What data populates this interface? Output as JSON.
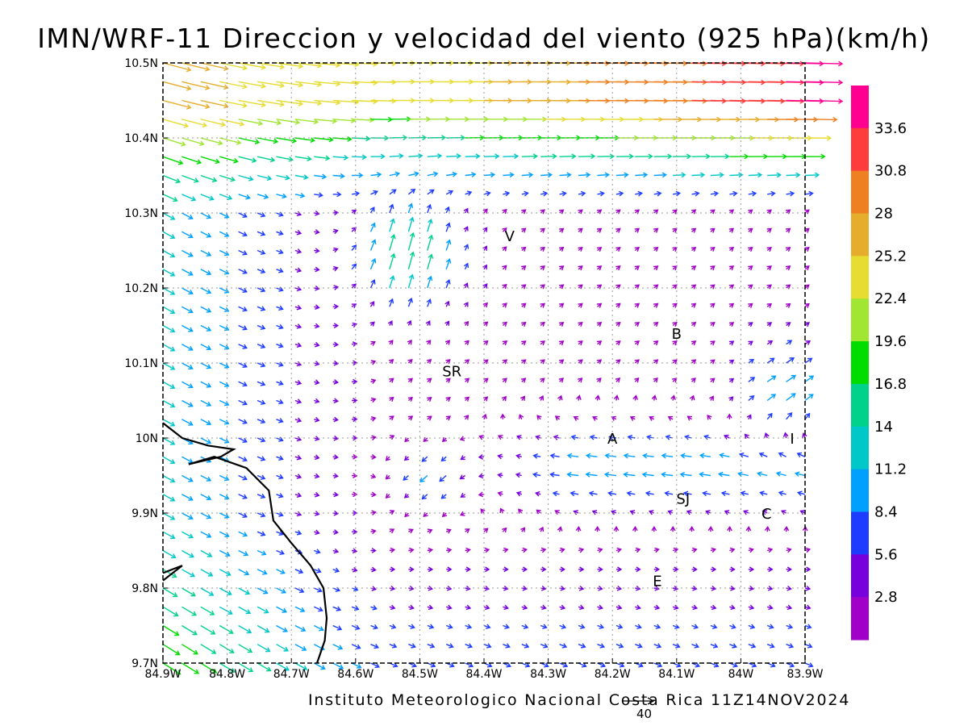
{
  "title": "IMN/WRF-11 Direccion y velocidad del viento (925 hPa)(km/h)",
  "footer": "Instituto Meteorologico Nacional Costa Rica 11Z14NOV2024",
  "reference_vector_label": "40",
  "map": {
    "lon_range": [
      -84.9,
      -83.9
    ],
    "lat_range": [
      9.7,
      10.5
    ],
    "grid": "dotted",
    "x_ticks": [
      "84.9W",
      "84.8W",
      "84.7W",
      "84.6W",
      "84.5W",
      "84.4W",
      "84.3W",
      "84.2W",
      "84.1W",
      "84W",
      "83.9W"
    ],
    "y_ticks": [
      "9.7N",
      "9.8N",
      "9.9N",
      "10N",
      "10.1N",
      "10.2N",
      "10.3N",
      "10.4N",
      "10.5N"
    ],
    "cities": [
      {
        "label": "V",
        "lon": -84.36,
        "lat": 10.27
      },
      {
        "label": "B",
        "lon": -84.1,
        "lat": 10.14
      },
      {
        "label": "SR",
        "lon": -84.45,
        "lat": 10.09
      },
      {
        "label": "A",
        "lon": -84.2,
        "lat": 10.0
      },
      {
        "label": "I",
        "lon": -83.92,
        "lat": 10.0
      },
      {
        "label": "SJ",
        "lon": -84.09,
        "lat": 9.92
      },
      {
        "label": "C",
        "lon": -83.96,
        "lat": 9.9
      },
      {
        "label": "E",
        "lon": -84.13,
        "lat": 9.81
      }
    ]
  },
  "colorbar": {
    "labels": [
      "33.6",
      "30.8",
      "28",
      "25.2",
      "22.4",
      "19.6",
      "16.8",
      "14",
      "11.2",
      "8.4",
      "5.6",
      "2.8"
    ],
    "colors": [
      "#ff0090",
      "#ff3c3c",
      "#ee8022",
      "#e6ac2c",
      "#e6dc32",
      "#a0e632",
      "#00dc00",
      "#00d28c",
      "#00c8c8",
      "#00a0ff",
      "#1e3cff",
      "#7800dc",
      "#a000c8"
    ]
  }
}
